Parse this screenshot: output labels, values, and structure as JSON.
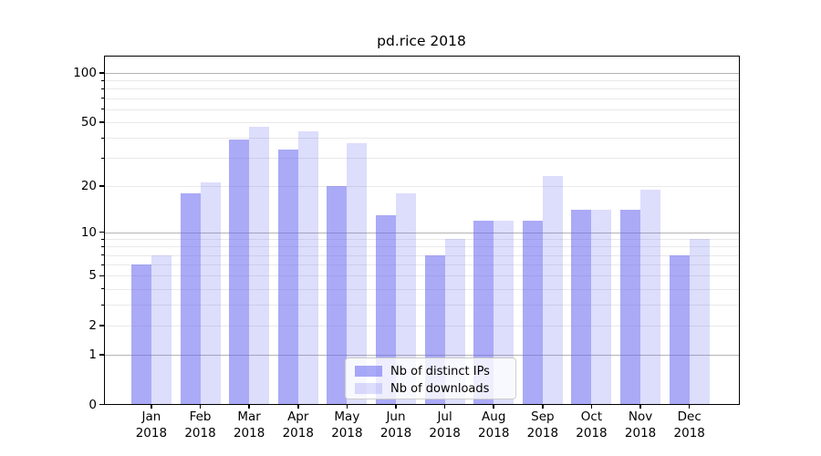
{
  "chart_data": {
    "type": "bar",
    "title": "pd.rice 2018",
    "categories": [
      "Jan",
      "Feb",
      "Mar",
      "Apr",
      "May",
      "Jun",
      "Jul",
      "Aug",
      "Sep",
      "Oct",
      "Nov",
      "Dec"
    ],
    "year_label": "2018",
    "series": [
      {
        "name": "Nb of distinct IPs",
        "color_hex": "#a8a8f4",
        "color_rgba": "rgba(101,101,240,0.55)",
        "values": [
          6,
          18,
          39,
          34,
          20,
          13,
          7,
          12,
          12,
          14,
          14,
          7
        ]
      },
      {
        "name": "Nb of downloads",
        "color_hex": "#dbdbf9",
        "color_rgba": "rgba(101,101,240,0.22)",
        "values": [
          7,
          21,
          47,
          44,
          37,
          18,
          9,
          12,
          23,
          14,
          19,
          9
        ]
      }
    ],
    "xlabel": "",
    "ylabel": "",
    "yscale": "log1p",
    "y_tick_labels": [
      100,
      50,
      20,
      10,
      5,
      2,
      1,
      0
    ],
    "y_minor_gridlines": [
      2,
      3,
      4,
      5,
      6,
      7,
      8,
      9,
      20,
      30,
      40,
      50,
      60,
      70,
      80,
      90
    ],
    "y_major_gridlines": [
      1,
      10,
      100
    ],
    "ylim": [
      0,
      130
    ],
    "grid": true,
    "legend_position": "lower center"
  },
  "colors": {
    "axis": "#000000",
    "major_grid": "#b4b4b4",
    "minor_grid": "#e9e9e9",
    "background": "#ffffff",
    "legend_border": "#cccccc"
  }
}
